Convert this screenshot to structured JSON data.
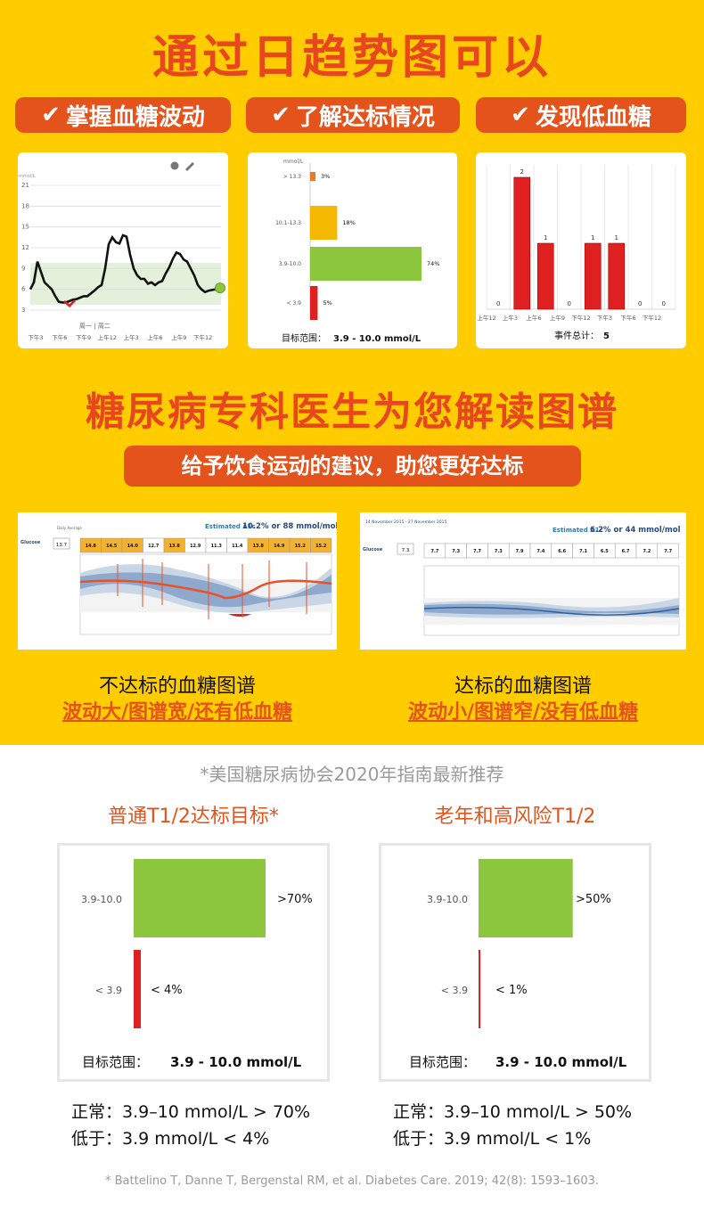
{
  "header": {
    "title": "通过日趋势图可以"
  },
  "pills": [
    {
      "check": "✔",
      "label": "掌握血糖波动"
    },
    {
      "check": "✔",
      "label": "了解达标情况"
    },
    {
      "check": "✔",
      "label": "发现低血糖"
    }
  ],
  "line_chart": {
    "unit": "mmol/L",
    "y_ticks": [
      "21",
      "18",
      "15",
      "12",
      "9",
      "6",
      "3"
    ],
    "x_ticks": [
      "下午3",
      "下午6",
      "下午9",
      "上午12",
      "上午3",
      "上午6",
      "上午9",
      "下午12"
    ],
    "day_label": "周一 | 周二"
  },
  "bar_chart_h": {
    "unit": "mmol/L",
    "rows": [
      {
        "range": "> 13.3",
        "pct": "3%",
        "value": 3,
        "color": "#E8792B"
      },
      {
        "range": "10.1-13.3",
        "pct": "18%",
        "value": 18,
        "color": "#F5B800"
      },
      {
        "range": "3.9-10.0",
        "pct": "74%",
        "value": 74,
        "color": "#8CC63F"
      },
      {
        "range": "< 3.9",
        "pct": "5%",
        "value": 5,
        "color": "#E02020"
      }
    ],
    "footer_label": "目标范围：",
    "footer_value": "3.9 - 10.0 mmol/L"
  },
  "event_chart": {
    "categories": [
      "上午12",
      "上午3",
      "上午6",
      "上午9",
      "下午12",
      "下午3",
      "下午6",
      "下午12"
    ],
    "values": [
      0,
      2,
      1,
      0,
      1,
      1,
      0,
      0
    ],
    "footer_label": "事件总计：",
    "footer_value": "5"
  },
  "section2": {
    "title": "糖尿病专科医生为您解读图谱",
    "advice": "给予饮食运动的建议，助您更好达标"
  },
  "agp_left": {
    "a1c_label": "Estimated A1c",
    "a1c_value": "10.2% or 88 mmol/mol",
    "glucose_label": "Glucose",
    "daily_avg_label": "Daily Average",
    "overall_avg": "13.7",
    "daily_values": [
      "14.8",
      "14.5",
      "14.0",
      "12.7",
      "13.8",
      "12.9",
      "11.3",
      "11.4",
      "13.8",
      "14.9",
      "15.2",
      "15.2"
    ],
    "caption": "不达标的血糖图谱",
    "caption2": "波动大/图谱宽/还有低血糖"
  },
  "agp_right": {
    "date_range": "14 November 2015 - 27 November 2015",
    "a1c_label": "Estimated A1c",
    "a1c_value": "6.2% or 44 mmol/mol",
    "glucose_label": "Glucose",
    "overall_avg": "7.3",
    "daily_values": [
      "7.7",
      "7.3",
      "7.7",
      "7.3",
      "7.9",
      "7.4",
      "6.6",
      "7.1",
      "6.5",
      "6.7",
      "7.2",
      "7.7"
    ],
    "caption": "达标的血糖图谱",
    "caption2": "波动小/图谱窄/没有低血糖"
  },
  "guideline_note": "*美国糖尿病协会2020年指南最新推荐",
  "targets": [
    {
      "title": "普通T1/2达标目标*",
      "in_range_label": "3.9-10.0",
      "in_range_pct": ">70%",
      "in_range_value": 70,
      "low_label": "< 3.9",
      "low_pct": "< 4%",
      "low_value": 4,
      "footer_label": "目标范围：",
      "footer_value": "3.9 - 10.0 mmol/L",
      "normal_line": "正常：3.9–10 mmol/L > 70%",
      "low_line": "低于：3.9 mmol/L < 4%"
    },
    {
      "title": "老年和高风险T1/2",
      "in_range_label": "3.9-10.0",
      "in_range_pct": ">50%",
      "in_range_value": 50,
      "low_label": "< 3.9",
      "low_pct": "< 1%",
      "low_value": 1,
      "footer_label": "目标范围：",
      "footer_value": "3.9 - 10.0 mmol/L",
      "normal_line": "正常：3.9–10 mmol/L > 50%",
      "low_line": "低于：3.9 mmol/L < 1%"
    }
  ],
  "reference": "* Battelino T, Danne T, Bergenstal RM, et al. Diabetes Care. 2019; 42(8): 1593–1603."
}
